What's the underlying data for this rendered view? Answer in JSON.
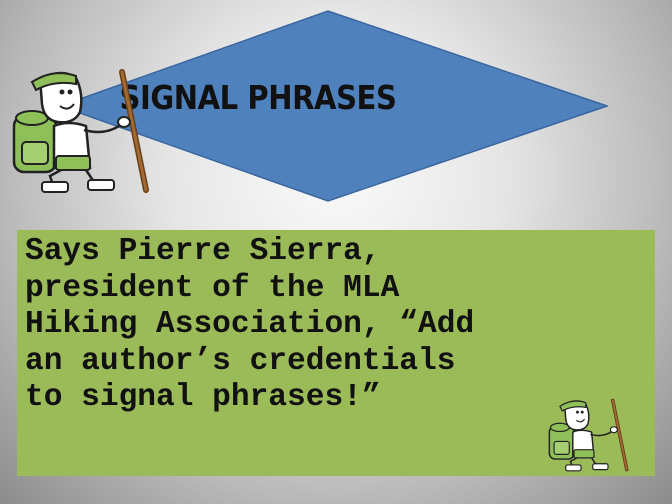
{
  "slide": {
    "title": "SIGNAL PHRASES",
    "quote_lines": [
      "Says Pierre Sierra,",
      "president of the MLA",
      "Hiking Association, “Add",
      "an author’s credentials",
      "to signal phrases!”"
    ]
  },
  "icons": {
    "hiker_large": "hiker-illustration",
    "hiker_small": "hiker-illustration"
  },
  "colors": {
    "diamond_fill": "#4f81bd",
    "diamond_stroke": "#3a66a0",
    "quote_box": "#9bbb59",
    "hiker_hat": "#8fbf58",
    "hiker_pack": "#8fbf58",
    "walking_stick": "#8a5a2b"
  }
}
